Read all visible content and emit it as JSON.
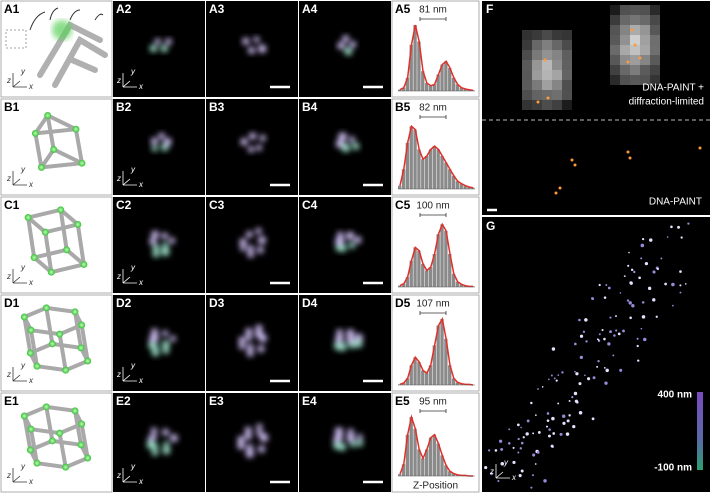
{
  "rows": [
    {
      "labels": [
        "A1",
        "A2",
        "A3",
        "A4",
        "A5"
      ],
      "distance": "81 nm",
      "profile": [
        0.02,
        0.05,
        0.2,
        0.7,
        1.0,
        0.75,
        0.3,
        0.12,
        0.08,
        0.1,
        0.25,
        0.4,
        0.45,
        0.35,
        0.2,
        0.1,
        0.05,
        0.03,
        0.02,
        0.01
      ]
    },
    {
      "labels": [
        "B1",
        "B2",
        "B3",
        "B4",
        "B5"
      ],
      "distance": "82 nm",
      "profile": [
        0.05,
        0.3,
        0.7,
        0.95,
        0.9,
        0.6,
        0.45,
        0.5,
        0.6,
        0.65,
        0.6,
        0.5,
        0.4,
        0.3,
        0.2,
        0.12,
        0.08,
        0.05,
        0.03,
        0.02
      ]
    },
    {
      "labels": [
        "C1",
        "C2",
        "C3",
        "C4",
        "C5"
      ],
      "distance": "100 nm",
      "profile": [
        0.02,
        0.05,
        0.15,
        0.4,
        0.6,
        0.55,
        0.35,
        0.25,
        0.3,
        0.5,
        0.8,
        0.95,
        0.85,
        0.5,
        0.2,
        0.08,
        0.04,
        0.02,
        0.01,
        0.01
      ]
    },
    {
      "labels": [
        "D1",
        "D2",
        "D3",
        "D4",
        "D5"
      ],
      "distance": "107 nm",
      "profile": [
        0.01,
        0.03,
        0.1,
        0.3,
        0.42,
        0.35,
        0.22,
        0.18,
        0.3,
        0.6,
        0.9,
        1.0,
        0.7,
        0.3,
        0.1,
        0.04,
        0.02,
        0.01,
        0.01,
        0.0
      ]
    },
    {
      "labels": [
        "E1",
        "E2",
        "E3",
        "E4",
        "E5"
      ],
      "distance": "95 nm",
      "profile": [
        0.03,
        0.2,
        0.7,
        1.0,
        0.8,
        0.45,
        0.3,
        0.45,
        0.65,
        0.7,
        0.55,
        0.35,
        0.18,
        0.08,
        0.04,
        0.02,
        0.01,
        0.01,
        0.0,
        0.0
      ]
    }
  ],
  "histogram_xlabel": "Z-Position",
  "axes": {
    "x": "x",
    "y": "y",
    "z": "z"
  },
  "panel_f": {
    "label": "F",
    "overlay_text": [
      "DNA-PAINT +",
      "diffraction-limited"
    ],
    "lower_text": "DNA-PAINT"
  },
  "panel_g": {
    "label": "G",
    "colorbar": {
      "top": "400 nm",
      "bottom": "-100 nm"
    }
  }
}
